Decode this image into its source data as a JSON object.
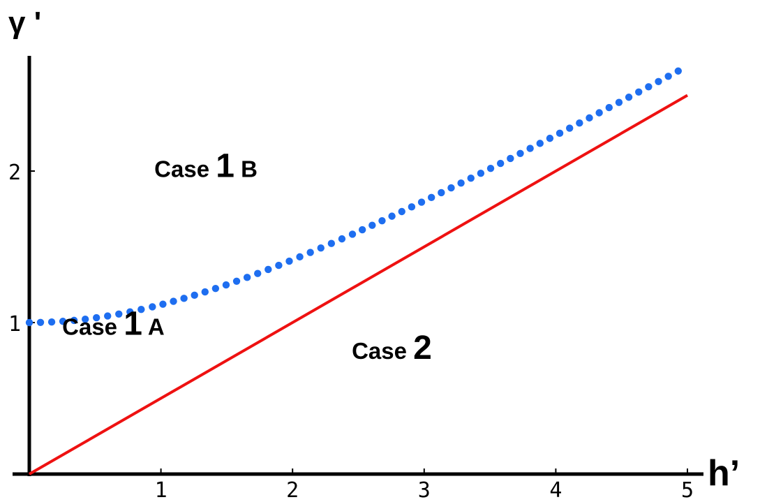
{
  "chart_data": {
    "type": "line",
    "xlabel": "h’",
    "ylabel": "γ '",
    "xlim": [
      0,
      5
    ],
    "ylim": [
      0,
      2.72
    ],
    "x_ticks": [
      1,
      2,
      3,
      4,
      5
    ],
    "y_ticks": [
      1,
      2
    ],
    "x_tick_labels": [
      "1",
      "2",
      "3",
      "4",
      "5"
    ],
    "y_tick_labels": [
      "1",
      "2"
    ],
    "grid": false,
    "series": [
      {
        "style": "dotted",
        "color": "#1e6ef0",
        "function": "sqrt(1 + (x/2)^2)",
        "x": [
          0,
          0.5,
          1,
          1.5,
          2,
          2.5,
          3,
          3.5,
          4,
          4.5,
          5
        ],
        "y": [
          1.0,
          1.03,
          1.12,
          1.25,
          1.41,
          1.6,
          1.8,
          2.02,
          2.24,
          2.46,
          2.69
        ]
      },
      {
        "style": "solid",
        "color": "#ee1111",
        "function": "x/2",
        "x": [
          0,
          5
        ],
        "y": [
          0,
          2.5
        ]
      }
    ],
    "annotations": [
      {
        "case": "Case",
        "number": "1",
        "suffix": "B",
        "x": 0.95,
        "y": 1.96
      },
      {
        "case": "Case",
        "number": "1",
        "suffix": "A",
        "x": 0.25,
        "y": 0.92
      },
      {
        "case": "Case",
        "number": "2",
        "suffix": "",
        "x": 2.45,
        "y": 0.76
      }
    ]
  }
}
